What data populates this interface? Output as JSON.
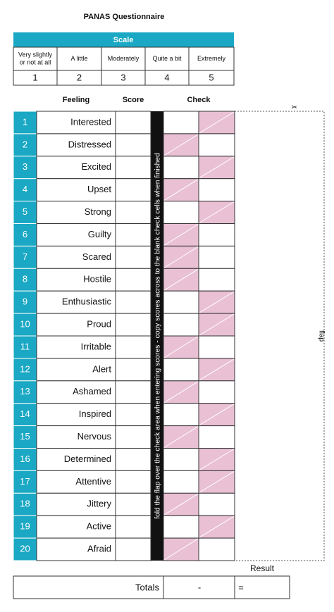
{
  "header": {
    "title": "PANAS Questionnaire"
  },
  "scale": {
    "title": "Scale",
    "levels": [
      {
        "label": "Very slightly or not at all",
        "number": 1
      },
      {
        "label": "A little",
        "number": 2
      },
      {
        "label": "Moderately",
        "number": 3
      },
      {
        "label": "Quite a bit",
        "number": 4
      },
      {
        "label": "Extremely",
        "number": 5
      }
    ]
  },
  "columns": {
    "feeling": "Feeling",
    "score": "Score",
    "check": "Check"
  },
  "rows": [
    {
      "number": 1,
      "feeling": "Interested",
      "shaded": "right"
    },
    {
      "number": 2,
      "feeling": "Distressed",
      "shaded": "left"
    },
    {
      "number": 3,
      "feeling": "Excited",
      "shaded": "right"
    },
    {
      "number": 4,
      "feeling": "Upset",
      "shaded": "left"
    },
    {
      "number": 5,
      "feeling": "Strong",
      "shaded": "right"
    },
    {
      "number": 6,
      "feeling": "Guilty",
      "shaded": "left"
    },
    {
      "number": 7,
      "feeling": "Scared",
      "shaded": "left"
    },
    {
      "number": 8,
      "feeling": "Hostile",
      "shaded": "left"
    },
    {
      "number": 9,
      "feeling": "Enthusiastic",
      "shaded": "right"
    },
    {
      "number": 10,
      "feeling": "Proud",
      "shaded": "right"
    },
    {
      "number": 11,
      "feeling": "Irritable",
      "shaded": "left"
    },
    {
      "number": 12,
      "feeling": "Alert",
      "shaded": "right"
    },
    {
      "number": 13,
      "feeling": "Ashamed",
      "shaded": "left"
    },
    {
      "number": 14,
      "feeling": "Inspired",
      "shaded": "right"
    },
    {
      "number": 15,
      "feeling": "Nervous",
      "shaded": "left"
    },
    {
      "number": 16,
      "feeling": "Determined",
      "shaded": "right"
    },
    {
      "number": 17,
      "feeling": "Attentive",
      "shaded": "right"
    },
    {
      "number": 18,
      "feeling": "Jittery",
      "shaded": "left"
    },
    {
      "number": 19,
      "feeling": "Active",
      "shaded": "right"
    },
    {
      "number": 20,
      "feeling": "Afraid",
      "shaded": "left"
    }
  ],
  "fold_note": "fold the flap over the check area when entering scores - copy scores across to the blank check cells when finished",
  "flap": "flap",
  "result": "Result",
  "totals": {
    "label": "Totals",
    "minus": "-",
    "equals": "="
  }
}
